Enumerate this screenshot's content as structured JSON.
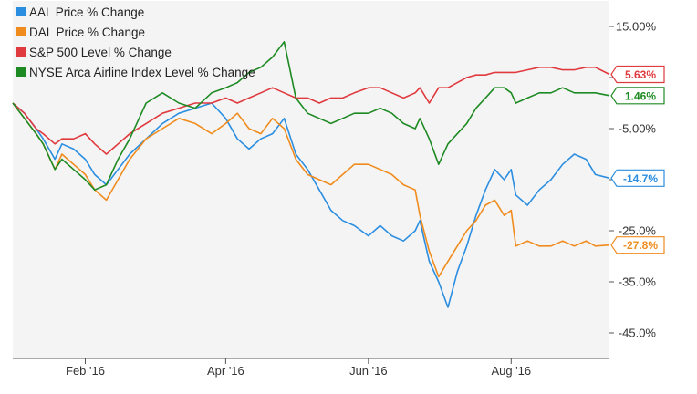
{
  "chart_data": {
    "type": "line",
    "title": "",
    "xlabel": "",
    "ylabel": "",
    "x_start": "2016-01-01",
    "x_end": "2016-09-12",
    "y_ticks": [
      15,
      5,
      -5,
      -15,
      -25,
      -35,
      -45
    ],
    "y_tick_labels": [
      "15.00%",
      "",
      "-5.00%",
      "",
      "-25.0%",
      "-35.0%",
      "-45.0%"
    ],
    "ylim": [
      -50,
      20
    ],
    "x_ticks": [
      "2016-02-01",
      "2016-04-01",
      "2016-06-01",
      "2016-08-01"
    ],
    "x_tick_labels": [
      "Feb '16",
      "Apr '16",
      "Jun '16",
      "Aug '16"
    ],
    "grid": false,
    "legend_placement": "top-left",
    "series": [
      {
        "name": "AAL Price % Change",
        "color": "#2b8ee0",
        "end_label": "-14.7%",
        "end_value": -14.7,
        "points": [
          [
            "2016-01-01",
            0
          ],
          [
            "2016-01-06",
            -2
          ],
          [
            "2016-01-11",
            -5
          ],
          [
            "2016-01-14",
            -7
          ],
          [
            "2016-01-19",
            -11
          ],
          [
            "2016-01-22",
            -8
          ],
          [
            "2016-01-27",
            -9
          ],
          [
            "2016-02-01",
            -11
          ],
          [
            "2016-02-05",
            -14
          ],
          [
            "2016-02-10",
            -16
          ],
          [
            "2016-02-15",
            -13
          ],
          [
            "2016-02-20",
            -10
          ],
          [
            "2016-02-27",
            -7
          ],
          [
            "2016-03-05",
            -4
          ],
          [
            "2016-03-12",
            -2
          ],
          [
            "2016-03-19",
            -1
          ],
          [
            "2016-03-26",
            0
          ],
          [
            "2016-04-01",
            -3
          ],
          [
            "2016-04-06",
            -7
          ],
          [
            "2016-04-11",
            -9
          ],
          [
            "2016-04-16",
            -7
          ],
          [
            "2016-04-21",
            -6
          ],
          [
            "2016-04-26",
            -3
          ],
          [
            "2016-05-01",
            -10
          ],
          [
            "2016-05-06",
            -13
          ],
          [
            "2016-05-11",
            -17
          ],
          [
            "2016-05-16",
            -21
          ],
          [
            "2016-05-21",
            -23
          ],
          [
            "2016-05-26",
            -24
          ],
          [
            "2016-06-01",
            -26
          ],
          [
            "2016-06-06",
            -24
          ],
          [
            "2016-06-11",
            -26
          ],
          [
            "2016-06-16",
            -27
          ],
          [
            "2016-06-21",
            -25
          ],
          [
            "2016-06-23",
            -23
          ],
          [
            "2016-06-27",
            -31
          ],
          [
            "2016-07-01",
            -35
          ],
          [
            "2016-07-05",
            -40
          ],
          [
            "2016-07-09",
            -33
          ],
          [
            "2016-07-13",
            -28
          ],
          [
            "2016-07-17",
            -22
          ],
          [
            "2016-07-21",
            -17
          ],
          [
            "2016-07-25",
            -13
          ],
          [
            "2016-07-29",
            -15
          ],
          [
            "2016-08-01",
            -13
          ],
          [
            "2016-08-03",
            -18
          ],
          [
            "2016-08-08",
            -20
          ],
          [
            "2016-08-13",
            -17
          ],
          [
            "2016-08-18",
            -15
          ],
          [
            "2016-08-23",
            -12
          ],
          [
            "2016-08-28",
            -10
          ],
          [
            "2016-09-02",
            -11
          ],
          [
            "2016-09-06",
            -14
          ],
          [
            "2016-09-12",
            -14.7
          ]
        ]
      },
      {
        "name": "DAL Price % Change",
        "color": "#f08c1e",
        "end_label": "-27.8%",
        "end_value": -27.8,
        "points": [
          [
            "2016-01-01",
            0
          ],
          [
            "2016-01-06",
            -3
          ],
          [
            "2016-01-11",
            -6
          ],
          [
            "2016-01-14",
            -8
          ],
          [
            "2016-01-19",
            -13
          ],
          [
            "2016-01-22",
            -10
          ],
          [
            "2016-01-27",
            -12
          ],
          [
            "2016-02-01",
            -14
          ],
          [
            "2016-02-05",
            -17
          ],
          [
            "2016-02-10",
            -19
          ],
          [
            "2016-02-15",
            -15
          ],
          [
            "2016-02-20",
            -11
          ],
          [
            "2016-02-27",
            -7
          ],
          [
            "2016-03-05",
            -5
          ],
          [
            "2016-03-12",
            -3
          ],
          [
            "2016-03-19",
            -4
          ],
          [
            "2016-03-26",
            -6
          ],
          [
            "2016-04-01",
            -4
          ],
          [
            "2016-04-06",
            -2
          ],
          [
            "2016-04-11",
            -5
          ],
          [
            "2016-04-16",
            -6
          ],
          [
            "2016-04-21",
            -3
          ],
          [
            "2016-04-26",
            -5
          ],
          [
            "2016-05-01",
            -11
          ],
          [
            "2016-05-06",
            -14
          ],
          [
            "2016-05-11",
            -15
          ],
          [
            "2016-05-16",
            -16
          ],
          [
            "2016-05-21",
            -14
          ],
          [
            "2016-05-26",
            -12
          ],
          [
            "2016-06-01",
            -12
          ],
          [
            "2016-06-06",
            -13
          ],
          [
            "2016-06-11",
            -14
          ],
          [
            "2016-06-16",
            -16
          ],
          [
            "2016-06-21",
            -17
          ],
          [
            "2016-06-23",
            -22
          ],
          [
            "2016-06-27",
            -29
          ],
          [
            "2016-07-01",
            -34
          ],
          [
            "2016-07-05",
            -31
          ],
          [
            "2016-07-09",
            -28
          ],
          [
            "2016-07-13",
            -25
          ],
          [
            "2016-07-17",
            -23
          ],
          [
            "2016-07-21",
            -20
          ],
          [
            "2016-07-25",
            -19
          ],
          [
            "2016-07-29",
            -22
          ],
          [
            "2016-08-01",
            -21
          ],
          [
            "2016-08-03",
            -28
          ],
          [
            "2016-08-08",
            -27
          ],
          [
            "2016-08-13",
            -28
          ],
          [
            "2016-08-18",
            -28
          ],
          [
            "2016-08-23",
            -27
          ],
          [
            "2016-08-28",
            -28
          ],
          [
            "2016-09-02",
            -27
          ],
          [
            "2016-09-06",
            -28
          ],
          [
            "2016-09-12",
            -27.8
          ]
        ]
      },
      {
        "name": "S&P 500 Level % Change",
        "color": "#e0393e",
        "end_label": "5.63%",
        "end_value": 5.63,
        "points": [
          [
            "2016-01-01",
            0
          ],
          [
            "2016-01-06",
            -2
          ],
          [
            "2016-01-11",
            -5
          ],
          [
            "2016-01-14",
            -6
          ],
          [
            "2016-01-19",
            -8
          ],
          [
            "2016-01-22",
            -7
          ],
          [
            "2016-01-27",
            -7
          ],
          [
            "2016-02-01",
            -6
          ],
          [
            "2016-02-05",
            -8
          ],
          [
            "2016-02-10",
            -10
          ],
          [
            "2016-02-15",
            -8
          ],
          [
            "2016-02-20",
            -6
          ],
          [
            "2016-02-27",
            -4
          ],
          [
            "2016-03-05",
            -2
          ],
          [
            "2016-03-12",
            -1
          ],
          [
            "2016-03-19",
            0
          ],
          [
            "2016-03-26",
            0
          ],
          [
            "2016-04-01",
            1
          ],
          [
            "2016-04-06",
            0
          ],
          [
            "2016-04-11",
            1
          ],
          [
            "2016-04-16",
            2
          ],
          [
            "2016-04-21",
            3
          ],
          [
            "2016-04-26",
            2
          ],
          [
            "2016-05-01",
            1
          ],
          [
            "2016-05-06",
            1
          ],
          [
            "2016-05-11",
            0
          ],
          [
            "2016-05-16",
            1
          ],
          [
            "2016-05-21",
            1
          ],
          [
            "2016-05-26",
            2
          ],
          [
            "2016-06-01",
            3
          ],
          [
            "2016-06-06",
            3
          ],
          [
            "2016-06-11",
            2
          ],
          [
            "2016-06-16",
            1
          ],
          [
            "2016-06-21",
            2
          ],
          [
            "2016-06-23",
            3
          ],
          [
            "2016-06-27",
            0
          ],
          [
            "2016-07-01",
            3
          ],
          [
            "2016-07-05",
            3
          ],
          [
            "2016-07-09",
            4
          ],
          [
            "2016-07-13",
            5
          ],
          [
            "2016-07-17",
            5.5
          ],
          [
            "2016-07-21",
            5.5
          ],
          [
            "2016-07-25",
            6
          ],
          [
            "2016-07-29",
            6
          ],
          [
            "2016-08-01",
            6
          ],
          [
            "2016-08-03",
            6
          ],
          [
            "2016-08-08",
            6.5
          ],
          [
            "2016-08-13",
            7
          ],
          [
            "2016-08-18",
            7
          ],
          [
            "2016-08-23",
            6.5
          ],
          [
            "2016-08-28",
            6.5
          ],
          [
            "2016-09-02",
            7
          ],
          [
            "2016-09-06",
            7
          ],
          [
            "2016-09-12",
            5.63
          ]
        ]
      },
      {
        "name": "NYSE Arca Airline Index Level % Change",
        "color": "#1e8a23",
        "end_label": "1.46%",
        "end_value": 1.46,
        "points": [
          [
            "2016-01-01",
            0
          ],
          [
            "2016-01-06",
            -3
          ],
          [
            "2016-01-11",
            -6
          ],
          [
            "2016-01-14",
            -8
          ],
          [
            "2016-01-19",
            -13
          ],
          [
            "2016-01-22",
            -11
          ],
          [
            "2016-01-27",
            -13
          ],
          [
            "2016-02-01",
            -15
          ],
          [
            "2016-02-05",
            -17
          ],
          [
            "2016-02-10",
            -16
          ],
          [
            "2016-02-15",
            -11
          ],
          [
            "2016-02-20",
            -7
          ],
          [
            "2016-02-27",
            0
          ],
          [
            "2016-03-05",
            2
          ],
          [
            "2016-03-12",
            0
          ],
          [
            "2016-03-19",
            -1
          ],
          [
            "2016-03-26",
            2
          ],
          [
            "2016-04-01",
            3
          ],
          [
            "2016-04-06",
            4
          ],
          [
            "2016-04-11",
            6
          ],
          [
            "2016-04-16",
            7
          ],
          [
            "2016-04-21",
            9
          ],
          [
            "2016-04-26",
            12
          ],
          [
            "2016-05-01",
            1
          ],
          [
            "2016-05-06",
            -2
          ],
          [
            "2016-05-11",
            -3
          ],
          [
            "2016-05-16",
            -4
          ],
          [
            "2016-05-21",
            -3
          ],
          [
            "2016-05-26",
            -2
          ],
          [
            "2016-06-01",
            -2
          ],
          [
            "2016-06-06",
            -1
          ],
          [
            "2016-06-11",
            -2
          ],
          [
            "2016-06-16",
            -4
          ],
          [
            "2016-06-21",
            -5
          ],
          [
            "2016-06-23",
            -3
          ],
          [
            "2016-06-27",
            -7
          ],
          [
            "2016-07-01",
            -12
          ],
          [
            "2016-07-05",
            -8
          ],
          [
            "2016-07-09",
            -6
          ],
          [
            "2016-07-13",
            -4
          ],
          [
            "2016-07-17",
            -1
          ],
          [
            "2016-07-21",
            1
          ],
          [
            "2016-07-25",
            3
          ],
          [
            "2016-07-29",
            3
          ],
          [
            "2016-08-01",
            2
          ],
          [
            "2016-08-03",
            0
          ],
          [
            "2016-08-08",
            1
          ],
          [
            "2016-08-13",
            2
          ],
          [
            "2016-08-18",
            2
          ],
          [
            "2016-08-23",
            3
          ],
          [
            "2016-08-28",
            2
          ],
          [
            "2016-09-02",
            2
          ],
          [
            "2016-09-06",
            2
          ],
          [
            "2016-09-12",
            1.46
          ]
        ]
      }
    ]
  }
}
